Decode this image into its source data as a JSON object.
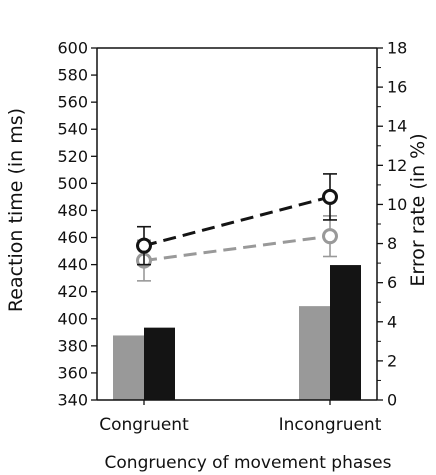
{
  "chart_data": {
    "type": "bar",
    "title": "",
    "xlabel": "Congruency of movement phases",
    "ylabel": "Reaction time (in ms)",
    "ylabel_right": "Error rate (in %)",
    "categories": [
      "Congruent",
      "Incongruent"
    ],
    "ylim": [
      340,
      600
    ],
    "yticks": [
      340,
      360,
      380,
      400,
      420,
      440,
      460,
      480,
      500,
      520,
      540,
      560,
      580,
      600
    ],
    "ylim_right": [
      0,
      18
    ],
    "yticks_right": [
      0,
      2,
      4,
      6,
      8,
      10,
      12,
      14,
      16,
      18
    ],
    "grid": false,
    "bar_series": [
      {
        "axis": "right",
        "color": "#999999",
        "values": [
          3.3,
          4.8
        ]
      },
      {
        "axis": "right",
        "color": "#141414",
        "values": [
          3.7,
          6.9
        ]
      }
    ],
    "line_series": [
      {
        "axis": "left",
        "color": "#999999",
        "style": "dashed",
        "marker": "open-circle",
        "values": [
          443,
          461
        ],
        "error": [
          15,
          15
        ]
      },
      {
        "axis": "left",
        "color": "#141414",
        "style": "dashed",
        "marker": "open-circle",
        "values": [
          454,
          490
        ],
        "error": [
          14,
          17
        ]
      }
    ]
  }
}
